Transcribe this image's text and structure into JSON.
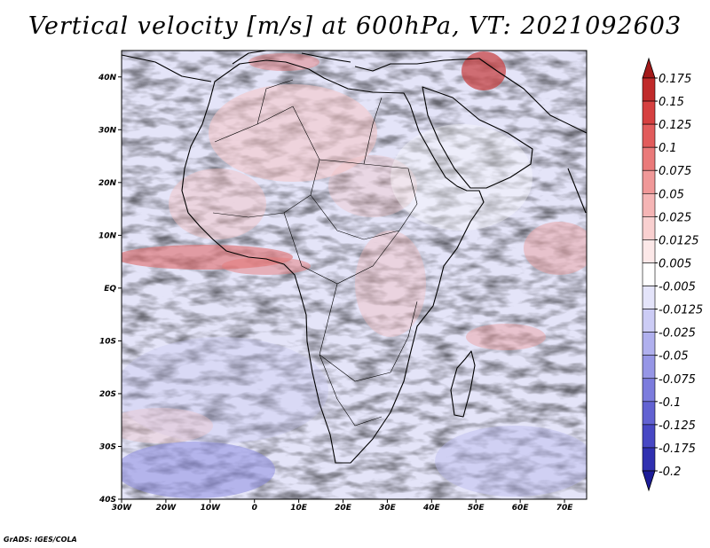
{
  "title": "Vertical velocity [m/s] at 600hPa, VT: 2021092603",
  "credit": "GrADS: IGES/COLA",
  "map": {
    "lon_range": [
      -30,
      75
    ],
    "lat_range": [
      -40,
      45
    ],
    "lat_ticks": [
      {
        "value": 40,
        "label": "40N"
      },
      {
        "value": 30,
        "label": "30N"
      },
      {
        "value": 20,
        "label": "20N"
      },
      {
        "value": 10,
        "label": "10N"
      },
      {
        "value": 0,
        "label": "EQ"
      },
      {
        "value": -10,
        "label": "10S"
      },
      {
        "value": -20,
        "label": "20S"
      },
      {
        "value": -30,
        "label": "30S"
      },
      {
        "value": -40,
        "label": "40S"
      }
    ],
    "lon_ticks": [
      {
        "value": -30,
        "label": "30W"
      },
      {
        "value": -20,
        "label": "20W"
      },
      {
        "value": -10,
        "label": "10W"
      },
      {
        "value": 0,
        "label": "0"
      },
      {
        "value": 10,
        "label": "10E"
      },
      {
        "value": 20,
        "label": "20E"
      },
      {
        "value": 30,
        "label": "30E"
      },
      {
        "value": 40,
        "label": "40E"
      },
      {
        "value": 50,
        "label": "50E"
      },
      {
        "value": 60,
        "label": "60E"
      },
      {
        "value": 70,
        "label": "70E"
      }
    ]
  },
  "colorbar": {
    "labels": [
      "0.175",
      "0.15",
      "0.125",
      "0.1",
      "0.075",
      "0.05",
      "0.025",
      "0.0125",
      "0.005",
      "-0.005",
      "-0.0125",
      "-0.025",
      "-0.05",
      "-0.075",
      "-0.1",
      "-0.125",
      "-0.175",
      "-0.2"
    ],
    "colors": [
      "#a31a1a",
      "#c02a2a",
      "#d64040",
      "#e25c5c",
      "#ea7a7a",
      "#f09898",
      "#f5b5b5",
      "#f9d0d0",
      "#fce8e8",
      "#ffffff",
      "#e4e4fa",
      "#ccccf5",
      "#b0b0ee",
      "#9696e6",
      "#7c7cdd",
      "#6262d2",
      "#4848c4",
      "#3030b0",
      "#1c1c98"
    ]
  }
}
